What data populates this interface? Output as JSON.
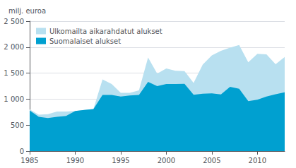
{
  "chart_data": {
    "type": "area",
    "ylabel": "milj. euroa",
    "x": [
      1985,
      1986,
      1987,
      1988,
      1989,
      1990,
      1991,
      1992,
      1993,
      1994,
      1995,
      1996,
      1997,
      1998,
      1999,
      2000,
      2001,
      2002,
      2003,
      2004,
      2005,
      2006,
      2007,
      2008,
      2009,
      2010,
      2011,
      2012,
      2013
    ],
    "series": [
      {
        "name": "Ulkomailta aikarahdatut alukset",
        "color": "#b8e0f0",
        "values": [
          800,
          700,
          710,
          760,
          760,
          770,
          790,
          810,
          1380,
          1290,
          1120,
          1120,
          1170,
          1800,
          1490,
          1590,
          1545,
          1540,
          1310,
          1665,
          1840,
          1930,
          1990,
          2040,
          1710,
          1870,
          1860,
          1670,
          1810
        ]
      },
      {
        "name": "Suomalaiset alukset",
        "color": "#00a0d0",
        "values": [
          780,
          660,
          635,
          660,
          675,
          770,
          790,
          810,
          1080,
          1080,
          1050,
          1070,
          1080,
          1330,
          1250,
          1290,
          1290,
          1295,
          1085,
          1105,
          1110,
          1090,
          1235,
          1200,
          960,
          990,
          1050,
          1095,
          1130
        ]
      }
    ],
    "xlim": [
      1985,
      2013
    ],
    "xticks": [
      1985,
      1990,
      1995,
      2000,
      2005,
      2010
    ],
    "ylim": [
      0,
      2500
    ],
    "yticks": [
      0,
      500,
      {
        "value": 1000,
        "label": "1 000"
      },
      {
        "value": 1500,
        "label": "1 500"
      },
      {
        "value": 2000,
        "label": "2 000"
      },
      {
        "value": 2500,
        "label": "2 500"
      }
    ],
    "grid": true,
    "legend": "upper left"
  }
}
